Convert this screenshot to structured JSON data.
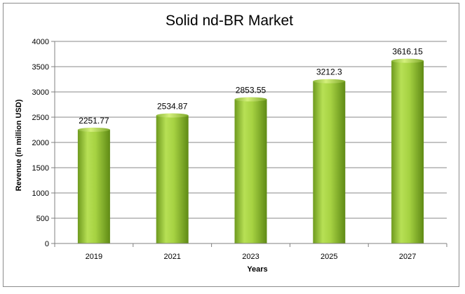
{
  "chart_data": {
    "type": "bar",
    "title": "Solid nd-BR Market",
    "xlabel": "Years",
    "ylabel": "Revenue (in million USD)",
    "categories": [
      "2019",
      "2021",
      "2023",
      "2025",
      "2027"
    ],
    "values": [
      2251.77,
      2534.87,
      2853.55,
      3212.3,
      3616.15
    ],
    "value_labels": [
      "2251.77",
      "2534.87",
      "2853.55",
      "3212.3",
      "3616.15"
    ],
    "ylim": [
      0,
      4000
    ],
    "yticks": [
      "0",
      "500",
      "1000",
      "1500",
      "2000",
      "2500",
      "3000",
      "3500",
      "4000"
    ],
    "grid": true,
    "legend": "none",
    "bar_color": "#8fbf2a"
  }
}
